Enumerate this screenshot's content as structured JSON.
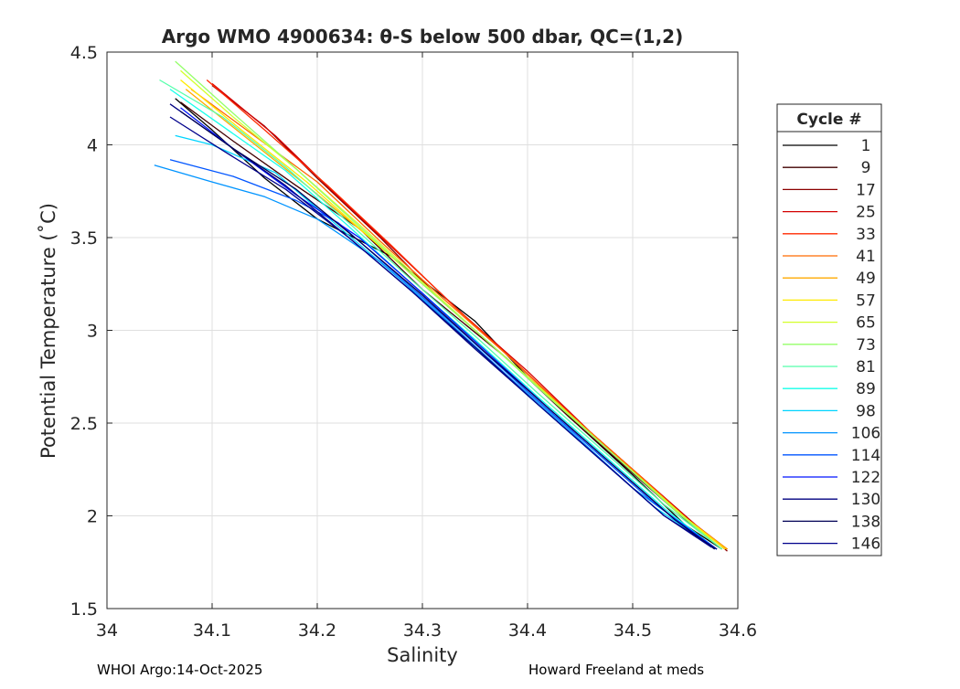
{
  "chart_data": {
    "type": "line",
    "title": "Argo WMO 4900634: θ-S below 500 dbar,  QC=(1,2)",
    "xlabel": "Salinity",
    "ylabel": "Potential Temperature (˚C)",
    "xlim": [
      34.0,
      34.6
    ],
    "ylim": [
      1.5,
      4.5
    ],
    "xticks": [
      "34",
      "34.1",
      "34.2",
      "34.3",
      "34.4",
      "34.5",
      "34.6"
    ],
    "yticks": [
      "1.5",
      "2",
      "2.5",
      "3",
      "3.5",
      "4",
      "4.5"
    ],
    "grid": true,
    "legend_title": "Cycle #",
    "legend_position": "right",
    "series": [
      {
        "name": "1",
        "color": "#000000",
        "x": [
          34.065,
          34.1,
          34.15,
          34.2,
          34.27,
          34.35,
          34.4,
          34.45,
          34.5,
          34.55,
          34.585
        ],
        "y": [
          4.25,
          4.08,
          3.82,
          3.6,
          3.4,
          3.05,
          2.75,
          2.48,
          2.22,
          1.95,
          1.82
        ]
      },
      {
        "name": "9",
        "color": "#400000",
        "x": [
          34.07,
          34.12,
          34.18,
          34.24,
          34.3,
          34.38,
          34.44,
          34.5,
          34.56,
          34.585
        ],
        "y": [
          4.23,
          4.02,
          3.78,
          3.55,
          3.22,
          2.85,
          2.53,
          2.23,
          1.93,
          1.82
        ]
      },
      {
        "name": "17",
        "color": "#8b0000",
        "x": [
          34.1,
          34.15,
          34.2,
          34.26,
          34.32,
          34.38,
          34.44,
          34.5,
          34.56,
          34.59
        ],
        "y": [
          4.32,
          4.1,
          3.82,
          3.5,
          3.15,
          2.85,
          2.55,
          2.25,
          1.95,
          1.81
        ]
      },
      {
        "name": "25",
        "color": "#d40000",
        "x": [
          34.1,
          34.16,
          34.22,
          34.28,
          34.34,
          34.4,
          34.46,
          34.52,
          34.56,
          34.59
        ],
        "y": [
          4.33,
          4.05,
          3.72,
          3.4,
          3.08,
          2.78,
          2.45,
          2.15,
          1.95,
          1.82
        ]
      },
      {
        "name": "33",
        "color": "#ff2a00",
        "x": [
          34.095,
          34.15,
          34.21,
          34.27,
          34.33,
          34.39,
          34.45,
          34.51,
          34.56,
          34.59
        ],
        "y": [
          4.35,
          4.08,
          3.78,
          3.46,
          3.13,
          2.82,
          2.5,
          2.2,
          1.94,
          1.82
        ]
      },
      {
        "name": "41",
        "color": "#ff6a00",
        "x": [
          34.08,
          34.14,
          34.2,
          34.26,
          34.32,
          34.38,
          34.44,
          34.5,
          34.56,
          34.59
        ],
        "y": [
          4.3,
          4.05,
          3.8,
          3.48,
          3.17,
          2.87,
          2.55,
          2.25,
          1.94,
          1.82
        ]
      },
      {
        "name": "49",
        "color": "#ffaa00",
        "x": [
          34.075,
          34.13,
          34.19,
          34.25,
          34.31,
          34.37,
          34.43,
          34.49,
          34.55,
          34.59
        ],
        "y": [
          4.3,
          4.05,
          3.78,
          3.5,
          3.2,
          2.9,
          2.59,
          2.29,
          1.99,
          1.82
        ]
      },
      {
        "name": "57",
        "color": "#ffea00",
        "x": [
          34.07,
          34.13,
          34.19,
          34.25,
          34.31,
          34.37,
          34.43,
          34.49,
          34.55,
          34.588
        ],
        "y": [
          4.35,
          4.07,
          3.8,
          3.5,
          3.2,
          2.9,
          2.59,
          2.29,
          1.99,
          1.82
        ]
      },
      {
        "name": "65",
        "color": "#d4ff2a",
        "x": [
          34.07,
          34.12,
          34.18,
          34.24,
          34.3,
          34.36,
          34.42,
          34.48,
          34.54,
          34.585
        ],
        "y": [
          4.4,
          4.15,
          3.87,
          3.57,
          3.26,
          2.95,
          2.65,
          2.34,
          2.04,
          1.82
        ]
      },
      {
        "name": "73",
        "color": "#94ff6a",
        "x": [
          34.065,
          34.12,
          34.18,
          34.24,
          34.3,
          34.36,
          34.42,
          34.48,
          34.54,
          34.585
        ],
        "y": [
          4.45,
          4.17,
          3.87,
          3.56,
          3.25,
          2.95,
          2.64,
          2.34,
          2.03,
          1.82
        ]
      },
      {
        "name": "81",
        "color": "#55ffaa",
        "x": [
          34.05,
          34.11,
          34.17,
          34.23,
          34.29,
          34.35,
          34.41,
          34.47,
          34.53,
          34.585
        ],
        "y": [
          4.35,
          4.15,
          3.88,
          3.58,
          3.27,
          2.97,
          2.66,
          2.36,
          2.06,
          1.82
        ]
      },
      {
        "name": "89",
        "color": "#15ffea",
        "x": [
          34.06,
          34.11,
          34.17,
          34.23,
          34.29,
          34.35,
          34.41,
          34.47,
          34.53,
          34.58
        ],
        "y": [
          4.3,
          4.1,
          3.86,
          3.56,
          3.25,
          2.95,
          2.64,
          2.34,
          2.04,
          1.82
        ]
      },
      {
        "name": "98",
        "color": "#00d4ff",
        "x": [
          34.065,
          34.1,
          34.16,
          34.22,
          34.28,
          34.34,
          34.4,
          34.46,
          34.52,
          34.58
        ],
        "y": [
          4.05,
          4.0,
          3.85,
          3.56,
          3.27,
          2.96,
          2.65,
          2.35,
          2.05,
          1.82
        ]
      },
      {
        "name": "106",
        "color": "#0094ff",
        "x": [
          34.045,
          34.1,
          34.15,
          34.2,
          34.26,
          34.32,
          34.38,
          34.44,
          34.5,
          34.58
        ],
        "y": [
          3.89,
          3.8,
          3.72,
          3.6,
          3.37,
          3.07,
          2.76,
          2.46,
          2.15,
          1.82
        ]
      },
      {
        "name": "114",
        "color": "#0055ff",
        "x": [
          34.06,
          34.12,
          34.18,
          34.22,
          34.28,
          34.34,
          34.4,
          34.46,
          34.52,
          34.58
        ],
        "y": [
          3.92,
          3.83,
          3.7,
          3.58,
          3.28,
          2.98,
          2.67,
          2.37,
          2.07,
          1.82
        ]
      },
      {
        "name": "122",
        "color": "#0015ff",
        "x": [
          34.07,
          34.12,
          34.18,
          34.24,
          34.3,
          34.36,
          34.42,
          34.48,
          34.54,
          34.58
        ],
        "y": [
          4.2,
          3.98,
          3.73,
          3.5,
          3.2,
          2.89,
          2.58,
          2.28,
          1.98,
          1.82
        ]
      },
      {
        "name": "130",
        "color": "#000080",
        "x": [
          34.06,
          34.11,
          34.17,
          34.23,
          34.29,
          34.35,
          34.41,
          34.47,
          34.53,
          34.58
        ],
        "y": [
          4.22,
          4.02,
          3.78,
          3.5,
          3.21,
          2.9,
          2.6,
          2.3,
          2.0,
          1.82
        ]
      },
      {
        "name": "138",
        "color": "#000055",
        "x": [
          34.07,
          34.12,
          34.18,
          34.24,
          34.3,
          34.36,
          34.42,
          34.48,
          34.54,
          34.578
        ],
        "y": [
          4.18,
          3.98,
          3.76,
          3.48,
          3.19,
          2.88,
          2.58,
          2.28,
          1.98,
          1.82
        ]
      },
      {
        "name": "146",
        "color": "#00008b",
        "x": [
          34.06,
          34.11,
          34.17,
          34.23,
          34.29,
          34.35,
          34.41,
          34.47,
          34.53,
          34.575
        ],
        "y": [
          4.15,
          3.97,
          3.76,
          3.5,
          3.21,
          2.91,
          2.6,
          2.3,
          2.0,
          1.83
        ]
      }
    ]
  },
  "footer": {
    "left": "WHOI Argo:14-Oct-2025",
    "right": "Howard Freeland at meds"
  }
}
